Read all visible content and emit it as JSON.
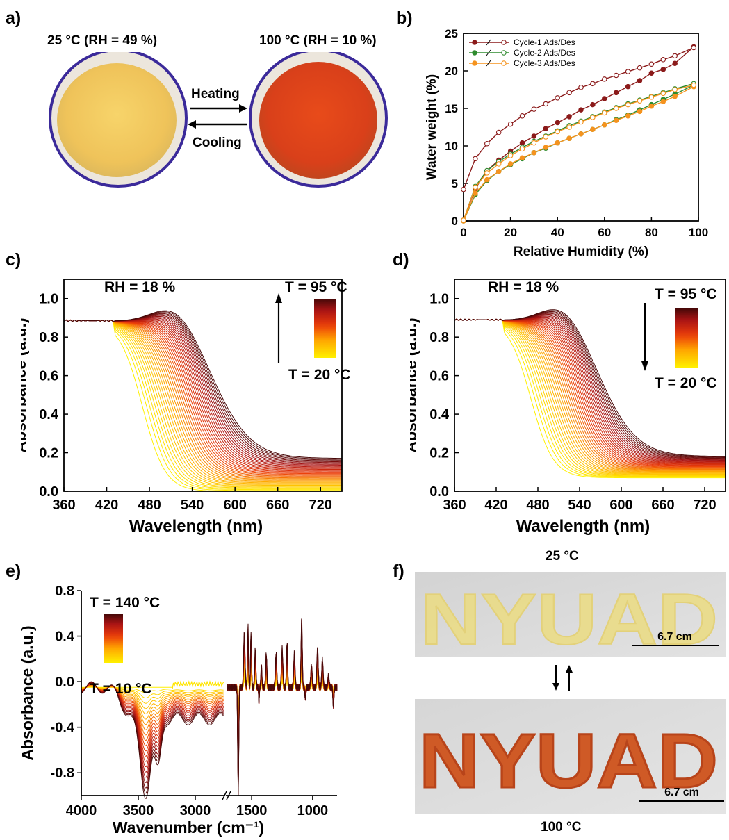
{
  "panels": {
    "a": {
      "label": "a)",
      "left_title": "25 °C (RH = 49 %)",
      "right_title": "100 °C (RH = 10 %)",
      "heating": "Heating",
      "cooling": "Cooling",
      "colors": {
        "yellow": "#f2c85a",
        "red": "#e0451c",
        "ring": "#3b2a9a"
      }
    },
    "b": {
      "label": "b)"
    },
    "c": {
      "label": "c)"
    },
    "d": {
      "label": "d)"
    },
    "e": {
      "label": "e)"
    },
    "f": {
      "label": "f)",
      "top_label": "25 °C",
      "bottom_label": "100 °C",
      "text": "NYUAD",
      "scale_top": "6.7 cm",
      "scale_bottom": "6.7 cm",
      "colors": {
        "yellow": "#e8d27a",
        "red": "#c9451c",
        "bg": "#d9d9d9"
      }
    }
  },
  "chart_data": [
    {
      "id": "b",
      "type": "line",
      "xlabel": "Relative Humidity (%)",
      "ylabel": "Water weight (%)",
      "xlim": [
        0,
        100
      ],
      "ylim": [
        0,
        25
      ],
      "xticks": [
        0,
        20,
        40,
        60,
        80,
        100
      ],
      "yticks": [
        0,
        5,
        10,
        15,
        20,
        25
      ],
      "legend_position": "top-left",
      "x": [
        0,
        5,
        10,
        15,
        20,
        25,
        30,
        35,
        40,
        45,
        50,
        55,
        60,
        65,
        70,
        75,
        80,
        85,
        90,
        98
      ],
      "series": [
        {
          "name": "Cycle-1 Ads/Des",
          "color": "#8b1a1a",
          "ads": [
            0.1,
            4.3,
            6.7,
            8.1,
            9.3,
            10.4,
            11.3,
            12.3,
            13.1,
            13.9,
            14.8,
            15.5,
            16.3,
            17.1,
            17.9,
            18.7,
            19.7,
            20.2,
            21.0,
            23.2
          ],
          "des": [
            4.2,
            8.3,
            10.3,
            11.8,
            12.9,
            14.0,
            14.9,
            15.6,
            16.4,
            17.1,
            17.8,
            18.3,
            18.9,
            19.4,
            19.9,
            20.4,
            20.9,
            21.5,
            22.0,
            23.1
          ]
        },
        {
          "name": "Cycle-2 Ads/Des",
          "color": "#2e8b2e",
          "ads": [
            0.0,
            3.5,
            5.4,
            6.6,
            7.5,
            8.3,
            9.1,
            9.7,
            10.4,
            11.0,
            11.6,
            12.2,
            12.8,
            13.5,
            14.1,
            14.8,
            15.5,
            16.2,
            16.9,
            18.1
          ],
          "des": [
            0.1,
            4.6,
            6.7,
            7.9,
            8.9,
            9.8,
            10.6,
            11.3,
            12.0,
            12.7,
            13.3,
            13.9,
            14.5,
            15.1,
            15.6,
            16.1,
            16.6,
            17.1,
            17.6,
            18.3
          ]
        },
        {
          "name": "Cycle-3 Ads/Des",
          "color": "#f5931e",
          "ads": [
            0.0,
            3.7,
            5.5,
            6.6,
            7.6,
            8.4,
            9.1,
            9.8,
            10.4,
            11.0,
            11.6,
            12.2,
            12.8,
            13.4,
            14.0,
            14.6,
            15.3,
            15.9,
            16.6,
            17.9
          ],
          "des": [
            0.1,
            4.5,
            6.4,
            7.6,
            8.7,
            9.6,
            10.4,
            11.2,
            11.9,
            12.5,
            13.2,
            13.8,
            14.4,
            15.0,
            15.5,
            16.0,
            16.5,
            17.0,
            17.5,
            18.1
          ]
        }
      ]
    },
    {
      "id": "c",
      "type": "line",
      "xlabel": "Wavelength (nm)",
      "ylabel": "Absorbance (a.u.)",
      "xlim": [
        360,
        750
      ],
      "ylim": [
        0,
        1.1
      ],
      "xticks": [
        360,
        420,
        480,
        540,
        600,
        660,
        720
      ],
      "yticks": [
        0.0,
        0.2,
        0.4,
        0.6,
        0.8,
        1.0
      ],
      "annotation": "RH = 18 %",
      "top_temp": "T = 95 °C",
      "bottom_temp": "T = 20 °C",
      "arrow": "up",
      "curve_count": 40,
      "hot_peak_nm": 520,
      "cold_edge_nm": 470,
      "hot_tail": 0.17,
      "cold_tail": 0.0,
      "plateau": 0.885
    },
    {
      "id": "d",
      "type": "line",
      "xlabel": "Wavelength (nm)",
      "ylabel": "Absorbance (a.u.)",
      "xlim": [
        360,
        750
      ],
      "ylim": [
        0,
        1.1
      ],
      "xticks": [
        360,
        420,
        480,
        540,
        600,
        660,
        720
      ],
      "yticks": [
        0.0,
        0.2,
        0.4,
        0.6,
        0.8,
        1.0
      ],
      "annotation": "RH = 18 %",
      "top_temp": "T = 95 °C",
      "bottom_temp": "T = 20 °C",
      "arrow": "down",
      "curve_count": 40,
      "hot_peak_nm": 520,
      "cold_edge_nm": 470,
      "hot_tail": 0.18,
      "cold_tail": 0.07,
      "plateau": 0.89
    },
    {
      "id": "e",
      "type": "line",
      "xlabel": "Wavenumber (cm⁻¹)",
      "ylabel": "Absorbance (a.u.)",
      "xlim": [
        4000,
        800
      ],
      "break": [
        2750,
        1700
      ],
      "ylim": [
        -1.0,
        0.8
      ],
      "xticks": [
        4000,
        3500,
        3000,
        1500,
        1000
      ],
      "yticks": [
        -0.8,
        -0.4,
        0.0,
        0.4,
        0.8
      ],
      "top_temp": "T = 140 °C",
      "bottom_temp": "T = 10 °C",
      "curve_count": 22,
      "oh_min": -0.87,
      "sharp_min": -1.0,
      "max_peak": 0.63
    }
  ]
}
